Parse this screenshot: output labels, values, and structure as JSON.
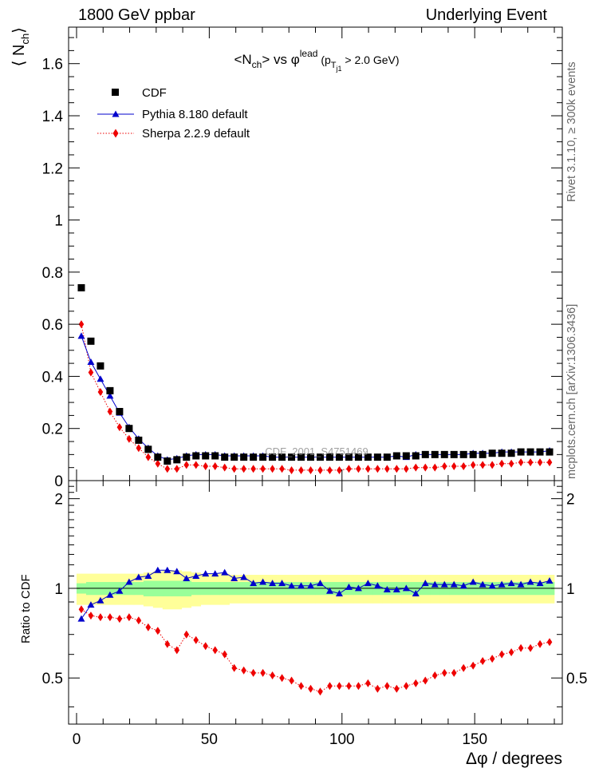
{
  "header": {
    "left": "1800 GeV ppbar",
    "right": "Underlying Event"
  },
  "side_labels": {
    "rivet": "Rivet 3.1.10, ≥ 300k events",
    "mcplots": "mcplots.cern.ch [arXiv:1306.3436]"
  },
  "chart_data": [
    {
      "type": "scatter",
      "title": "<N_ch> vs φ^lead (p_Tj1 > 2.0 GeV)",
      "title_parts": {
        "a": "<N",
        "a_sub": "ch",
        "b": "> vs φ",
        "b_sup": "lead",
        "c": " (p",
        "c_sub": "T",
        "c_subsub": "j1",
        "d": " > 2.0 GeV)"
      },
      "ylabel": "⟨ N_ch ⟩",
      "ylabel_parts": {
        "main": "⟨ N",
        "sub": "ch",
        "close": "⟩"
      },
      "watermark": "CDF_2001_S4751469",
      "xlim": [
        -3,
        183
      ],
      "ylim": [
        0,
        1.74
      ],
      "y_ticks": [
        0,
        0.2,
        0.4,
        0.6,
        0.8,
        1,
        1.2,
        1.4,
        1.6
      ],
      "y_tick_labels": [
        "0",
        "0.2",
        "0.4",
        "0.6",
        "0.8",
        "1",
        "1.2",
        "1.4",
        "1.6"
      ],
      "x": [
        1.8,
        5.4,
        9,
        12.6,
        16.2,
        19.8,
        23.4,
        27,
        30.6,
        34.2,
        37.8,
        41.4,
        45,
        48.6,
        52.2,
        55.8,
        59.4,
        63,
        66.6,
        70.2,
        73.8,
        77.4,
        81,
        84.6,
        88.2,
        91.8,
        95.4,
        99,
        102.6,
        106.2,
        109.8,
        113.4,
        117,
        120.6,
        124.2,
        127.8,
        131.4,
        135,
        138.6,
        142.2,
        145.8,
        149.4,
        153,
        156.6,
        160.2,
        163.8,
        167.4,
        171,
        174.6,
        178.2
      ],
      "legend_position": "top-left",
      "series": [
        {
          "name": "CDF",
          "color": "#000000",
          "marker": "square",
          "values": [
            0.74,
            0.535,
            0.44,
            0.345,
            0.265,
            0.2,
            0.155,
            0.12,
            0.09,
            0.075,
            0.08,
            0.09,
            0.095,
            0.095,
            0.095,
            0.09,
            0.09,
            0.09,
            0.09,
            0.09,
            0.09,
            0.09,
            0.09,
            0.09,
            0.09,
            0.09,
            0.09,
            0.09,
            0.09,
            0.09,
            0.09,
            0.09,
            0.09,
            0.095,
            0.095,
            0.095,
            0.1,
            0.1,
            0.1,
            0.1,
            0.1,
            0.1,
            0.1,
            0.105,
            0.105,
            0.105,
            0.11,
            0.11,
            0.11,
            0.11
          ]
        },
        {
          "name": "Pythia 8.180 default",
          "color": "#0000cc",
          "marker": "triangle",
          "line": "solid",
          "values": [
            0.555,
            0.455,
            0.39,
            0.325,
            0.26,
            0.205,
            0.16,
            0.125,
            0.095,
            0.08,
            0.085,
            0.095,
            0.1,
            0.1,
            0.1,
            0.095,
            0.095,
            0.095,
            0.095,
            0.095,
            0.09,
            0.09,
            0.09,
            0.09,
            0.09,
            0.09,
            0.09,
            0.09,
            0.09,
            0.09,
            0.09,
            0.09,
            0.09,
            0.095,
            0.09,
            0.1,
            0.1,
            0.1,
            0.1,
            0.1,
            0.1,
            0.105,
            0.105,
            0.105,
            0.11,
            0.11,
            0.11,
            0.11,
            0.11,
            0.115
          ]
        },
        {
          "name": "Sherpa 2.2.9 default",
          "color": "#ee0000",
          "marker": "diamond",
          "line": "dotted",
          "values": [
            0.6,
            0.415,
            0.34,
            0.265,
            0.205,
            0.16,
            0.125,
            0.09,
            0.065,
            0.045,
            0.045,
            0.06,
            0.06,
            0.055,
            0.055,
            0.05,
            0.045,
            0.045,
            0.045,
            0.045,
            0.045,
            0.045,
            0.04,
            0.04,
            0.04,
            0.04,
            0.04,
            0.04,
            0.045,
            0.045,
            0.045,
            0.045,
            0.045,
            0.045,
            0.045,
            0.05,
            0.05,
            0.05,
            0.055,
            0.055,
            0.055,
            0.06,
            0.06,
            0.06,
            0.065,
            0.065,
            0.07,
            0.07,
            0.07,
            0.07
          ]
        }
      ]
    },
    {
      "type": "scatter",
      "ylabel": "Ratio to CDF",
      "xlabel": "Δφ / degrees",
      "xlim": [
        -3,
        183
      ],
      "ylim": [
        0.35,
        2.3
      ],
      "log_y": true,
      "x_ticks": [
        0,
        50,
        100,
        150
      ],
      "x_tick_labels": [
        "0",
        "50",
        "100",
        "150"
      ],
      "y_ticks": [
        0.5,
        1,
        2
      ],
      "y_tick_labels": [
        "0.5",
        "1",
        "2"
      ],
      "band_inner_color": "#99ff99",
      "band_outer_color": "#ffff99",
      "band_inner": [
        0.04,
        0.05,
        0.05,
        0.05,
        0.05,
        0.05,
        0.05,
        0.06,
        0.06,
        0.06,
        0.06,
        0.06,
        0.05,
        0.05,
        0.05,
        0.05,
        0.05,
        0.05,
        0.05,
        0.05,
        0.05,
        0.05,
        0.05,
        0.05,
        0.05,
        0.05,
        0.05,
        0.05,
        0.05,
        0.05,
        0.05,
        0.05,
        0.05,
        0.05,
        0.05,
        0.05,
        0.05,
        0.05,
        0.05,
        0.05,
        0.05,
        0.05,
        0.05,
        0.05,
        0.05,
        0.05,
        0.05,
        0.05,
        0.05,
        0.05
      ],
      "band_outer": [
        0.12,
        0.12,
        0.12,
        0.12,
        0.12,
        0.12,
        0.12,
        0.13,
        0.14,
        0.15,
        0.15,
        0.14,
        0.13,
        0.12,
        0.12,
        0.12,
        0.11,
        0.11,
        0.11,
        0.11,
        0.11,
        0.11,
        0.11,
        0.11,
        0.11,
        0.11,
        0.11,
        0.11,
        0.11,
        0.11,
        0.11,
        0.11,
        0.11,
        0.11,
        0.11,
        0.11,
        0.11,
        0.11,
        0.11,
        0.11,
        0.11,
        0.11,
        0.11,
        0.11,
        0.11,
        0.11,
        0.11,
        0.11,
        0.11,
        0.11
      ],
      "series": [
        {
          "name": "Pythia 8.180 default",
          "color": "#0000cc",
          "marker": "triangle",
          "line": "solid",
          "values": [
            0.79,
            0.88,
            0.91,
            0.95,
            0.98,
            1.05,
            1.09,
            1.1,
            1.15,
            1.15,
            1.14,
            1.08,
            1.1,
            1.12,
            1.12,
            1.13,
            1.08,
            1.09,
            1.04,
            1.05,
            1.04,
            1.04,
            1.02,
            1.02,
            1.02,
            1.04,
            0.98,
            0.96,
            1.01,
            1.0,
            1.04,
            1.02,
            0.99,
            0.99,
            1.0,
            0.96,
            1.04,
            1.03,
            1.03,
            1.03,
            1.02,
            1.05,
            1.03,
            1.02,
            1.03,
            1.04,
            1.03,
            1.05,
            1.04,
            1.06
          ]
        },
        {
          "name": "Sherpa 2.2.9 default",
          "color": "#ee0000",
          "marker": "diamond",
          "line": "dotted",
          "values": [
            0.85,
            0.81,
            0.8,
            0.8,
            0.79,
            0.8,
            0.78,
            0.74,
            0.72,
            0.65,
            0.62,
            0.7,
            0.67,
            0.64,
            0.62,
            0.6,
            0.54,
            0.53,
            0.52,
            0.52,
            0.51,
            0.5,
            0.49,
            0.47,
            0.46,
            0.45,
            0.47,
            0.47,
            0.47,
            0.47,
            0.48,
            0.46,
            0.47,
            0.46,
            0.47,
            0.48,
            0.49,
            0.51,
            0.52,
            0.52,
            0.54,
            0.55,
            0.57,
            0.58,
            0.6,
            0.61,
            0.63,
            0.63,
            0.65,
            0.66
          ]
        }
      ]
    }
  ]
}
